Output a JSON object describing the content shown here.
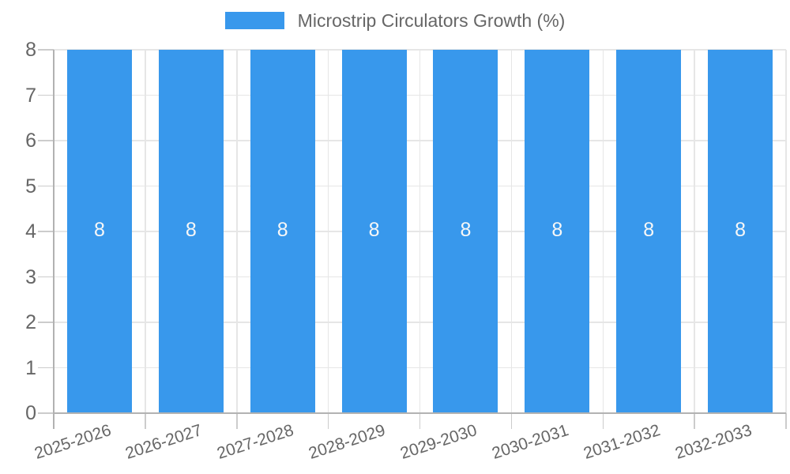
{
  "legend": {
    "label": "Microstrip Circulators Growth (%)"
  },
  "chart_data": {
    "type": "bar",
    "title": "",
    "xlabel": "",
    "ylabel": "",
    "categories": [
      "2025-2026",
      "2026-2027",
      "2027-2028",
      "2028-2029",
      "2029-2030",
      "2030-2031",
      "2031-2032",
      "2032-2033"
    ],
    "series": [
      {
        "name": "Microstrip Circulators Growth (%)",
        "values": [
          8,
          8,
          8,
          8,
          8,
          8,
          8,
          8
        ]
      }
    ],
    "value_labels": [
      "8",
      "8",
      "8",
      "8",
      "8",
      "8",
      "8",
      "8"
    ],
    "ylim": [
      0,
      8
    ],
    "yticks": [
      0,
      1,
      2,
      3,
      4,
      5,
      6,
      7,
      8
    ],
    "legend_position": "top",
    "grid": "on",
    "x_label_rotation_deg": -18,
    "colors": {
      "bar": "#3898ec",
      "value_label": "#f7f7f7",
      "grid": "#e6e6e6",
      "axis": "#b2b2b2",
      "tick": "#cccccc",
      "text": "#666666"
    }
  }
}
